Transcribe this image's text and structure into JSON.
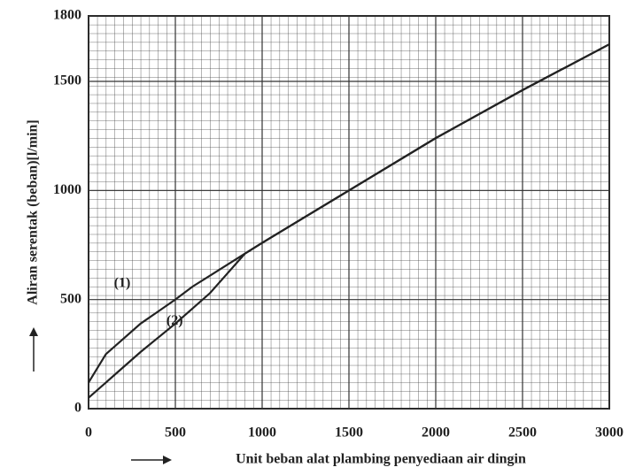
{
  "chart_data": {
    "type": "line",
    "xlabel": "Unit beban alat plambing penyediaan air dingin",
    "ylabel": "Aliran serentak (beban)[l/min]",
    "x": [
      0,
      100,
      200,
      300,
      400,
      500,
      600,
      700,
      800,
      900,
      1000,
      1500,
      2000,
      2500,
      3000
    ],
    "series": [
      {
        "name": "(1)",
        "color": "#222222",
        "values": [
          120,
          250,
          320,
          390,
          445,
          500,
          560,
          610,
          660,
          710,
          760,
          1000,
          1240,
          1460,
          1670
        ]
      },
      {
        "name": "(2)",
        "color": "#222222",
        "values": [
          50,
          120,
          190,
          260,
          325,
          390,
          460,
          530,
          620,
          710,
          760,
          1000,
          1240,
          1460,
          1670
        ]
      }
    ],
    "xlim": [
      0,
      3000
    ],
    "xticks": [
      0,
      500,
      1000,
      1500,
      2000,
      2500,
      3000
    ],
    "ylim": [
      0,
      1800
    ],
    "yticks": [
      0,
      500,
      1000,
      1500,
      1800
    ],
    "grid": true
  }
}
